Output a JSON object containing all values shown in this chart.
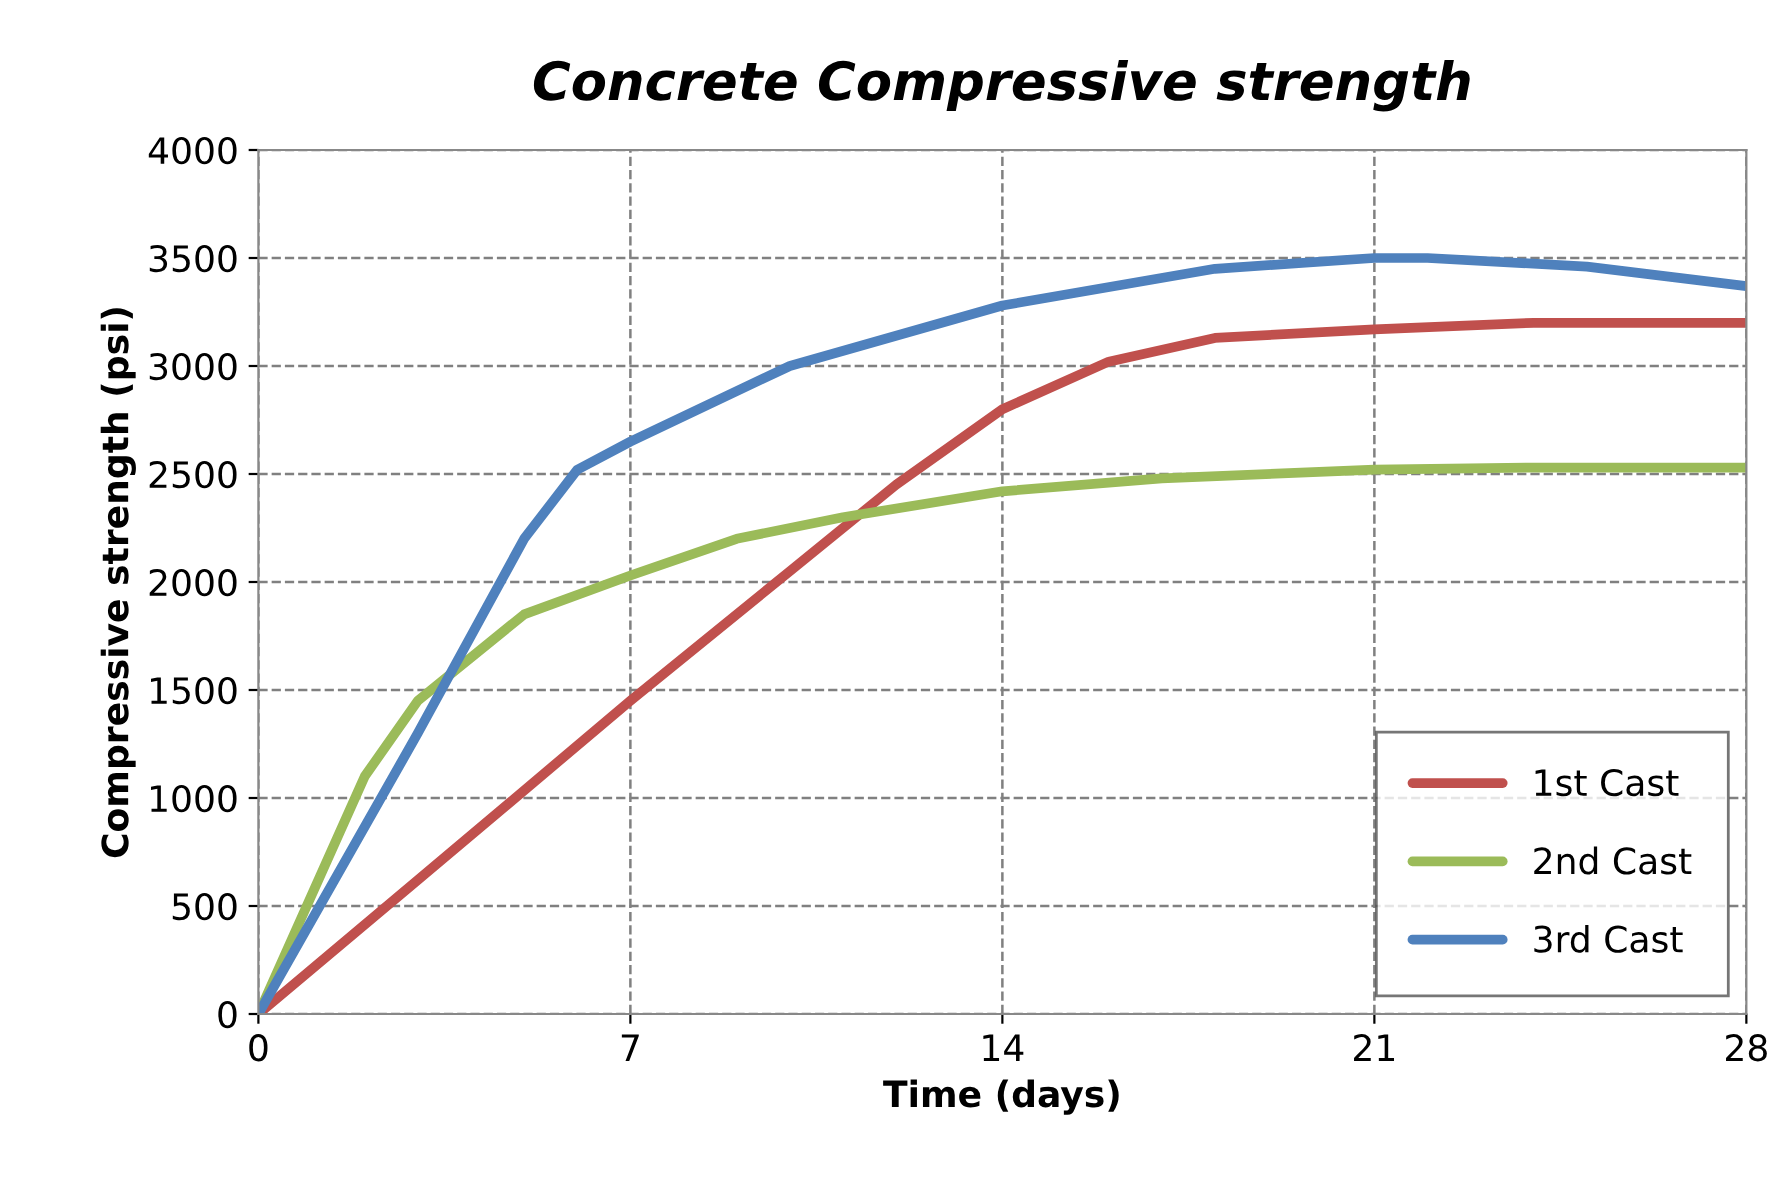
{
  "chart_data": {
    "type": "line",
    "title": "Concrete Compressive strength",
    "xlabel": "Time (days)",
    "ylabel": "Compressive strength (psi)",
    "xlim": [
      0,
      28
    ],
    "xticks": [
      0,
      7,
      14,
      21,
      28
    ],
    "ylim": [
      0,
      4000
    ],
    "yticks": [
      0,
      500,
      1000,
      1500,
      2000,
      2500,
      3000,
      3500,
      4000
    ],
    "grid": true,
    "legend": "lower right",
    "marker": "none",
    "line_style": "solid",
    "series": [
      {
        "name": "1st Cast",
        "color": "#c0504d",
        "x": [
          0,
          3,
          7,
          10,
          12,
          14,
          16,
          18,
          21,
          24,
          28
        ],
        "values": [
          0,
          620,
          1450,
          2050,
          2450,
          2800,
          3020,
          3130,
          3170,
          3200,
          3200
        ]
      },
      {
        "name": "2nd Cast",
        "color": "#9bbb59",
        "x": [
          0,
          2,
          3,
          5,
          7,
          9,
          11,
          14,
          17,
          21,
          24,
          28
        ],
        "values": [
          0,
          1100,
          1450,
          1850,
          2030,
          2200,
          2300,
          2420,
          2480,
          2520,
          2530,
          2530
        ]
      },
      {
        "name": "3rd Cast",
        "color": "#4f81bd",
        "x": [
          0,
          3,
          5,
          6,
          7,
          10,
          14,
          18,
          21,
          22,
          25,
          28
        ],
        "values": [
          0,
          1300,
          2200,
          2520,
          2650,
          3000,
          3280,
          3450,
          3500,
          3500,
          3460,
          3370
        ]
      }
    ]
  }
}
